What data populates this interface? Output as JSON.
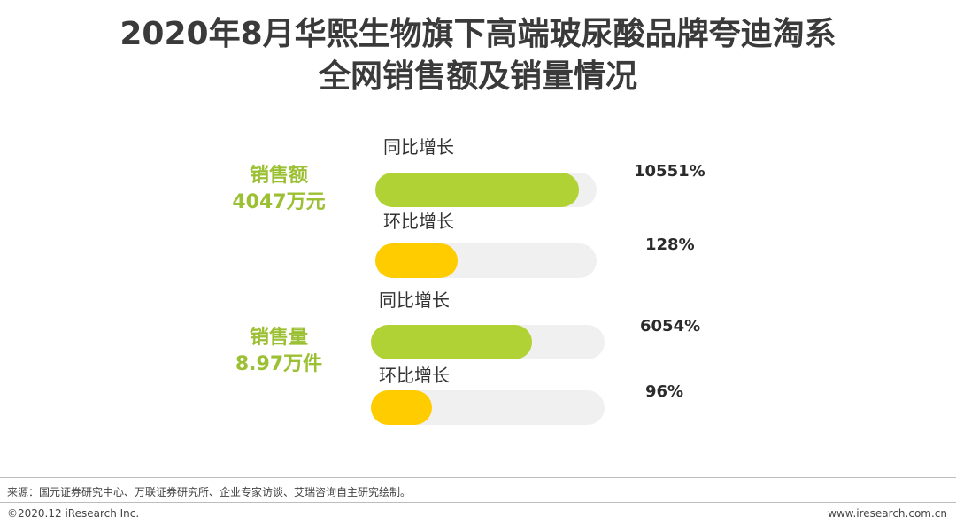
{
  "title": {
    "line1": "2020年8月华熙生物旗下高端玻尿酸品牌夸迪淘系",
    "line2": "全网销售额及销量情况"
  },
  "colors": {
    "green": "#b1d235",
    "yellow": "#ffcc00",
    "track": "#f0f0f0",
    "metric_text": "#9cc033"
  },
  "chart_data": {
    "type": "bar",
    "groups": [
      {
        "name": "销售额",
        "value_label": "4047万元",
        "bars": [
          {
            "label": "同比增长",
            "value_label": "10551%",
            "value": 10551,
            "fill_fraction": 0.92,
            "color": "#b1d235"
          },
          {
            "label": "环比增长",
            "value_label": "128%",
            "value": 128,
            "fill_fraction": 0.37,
            "color": "#ffcc00"
          }
        ]
      },
      {
        "name": "销售量",
        "value_label": "8.97万件",
        "bars": [
          {
            "label": "同比增长",
            "value_label": "6054%",
            "value": 6054,
            "fill_fraction": 0.69,
            "color": "#b1d235"
          },
          {
            "label": "环比增长",
            "value_label": "96%",
            "value": 96,
            "fill_fraction": 0.26,
            "color": "#ffcc00"
          }
        ]
      }
    ]
  },
  "footer": {
    "source": "来源：国元证券研究中心、万联证券研究所、企业专家访谈、艾瑞咨询自主研究绘制。",
    "copyright": "©2020.12 iResearch Inc.",
    "website": "www.iresearch.com.cn"
  }
}
